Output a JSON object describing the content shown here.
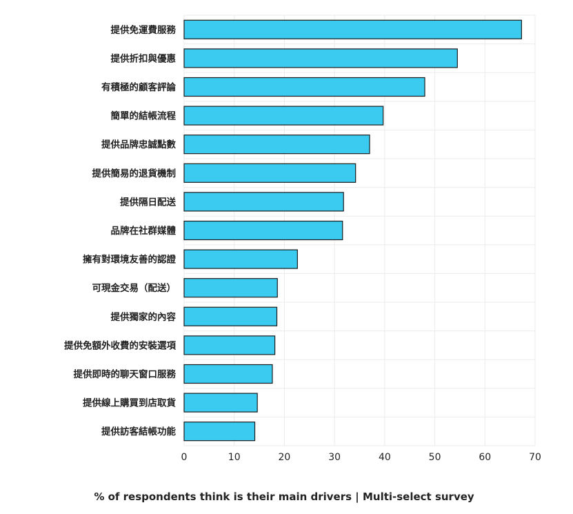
{
  "chart_data": {
    "type": "bar",
    "orientation": "horizontal",
    "categories": [
      "提供免運費服務",
      "提供折扣與優惠",
      "有積極的顧客評論",
      "簡單的結帳流程",
      "提供品牌忠誠點數",
      "提供簡易的退貨機制",
      "提供隔日配送",
      "品牌在社群媒體",
      "擁有對環境友善的認證",
      "可現金交易（配送）",
      "提供獨家的內容",
      "提供免額外收費的安裝選項",
      "提供即時的聊天窗口服務",
      "提供線上購買到店取貨",
      "提供訪客結帳功能"
    ],
    "values": [
      67.3,
      54.5,
      48.0,
      39.7,
      37.0,
      34.2,
      31.8,
      31.6,
      22.6,
      18.6,
      18.5,
      18.1,
      17.6,
      14.6,
      14.1
    ],
    "xlabel": "% of respondents think is their main drivers | Multi-select survey",
    "xlim": [
      0,
      70
    ],
    "xticks": [
      0,
      10,
      20,
      30,
      40,
      50,
      60,
      70
    ],
    "grid": true,
    "bar_color": "#3ccbf0"
  }
}
